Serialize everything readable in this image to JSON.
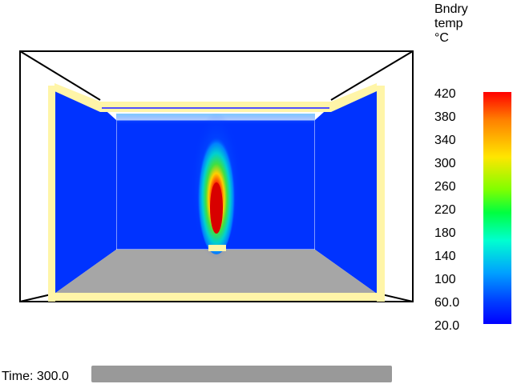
{
  "legend": {
    "title_lines": [
      "Bndry",
      "temp",
      "°C"
    ],
    "ticks": [
      "420",
      "380",
      "340",
      "300",
      "260",
      "220",
      "180",
      "140",
      "100",
      "60.0",
      "20.0"
    ]
  },
  "time": {
    "label": "Time: 300.0"
  },
  "colors": {
    "wall_blue": "#0033ff",
    "floor": "#a6a6a6",
    "frame": "#fff5a8",
    "outline": "#000000",
    "slider": "#999999"
  }
}
